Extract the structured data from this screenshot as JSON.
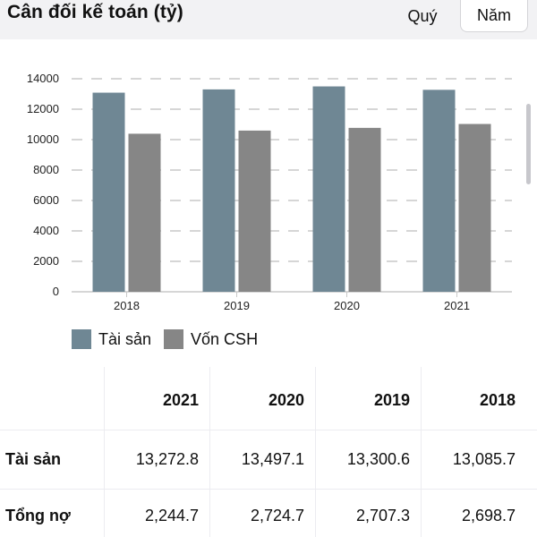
{
  "header": {
    "title": "Cân đối kế toán (tỷ)",
    "tabs": [
      "Quý",
      "Năm"
    ],
    "selected_tab": "Năm"
  },
  "chart_data": {
    "type": "bar",
    "categories": [
      "2018",
      "2019",
      "2020",
      "2021"
    ],
    "series": [
      {
        "name": "Tài sản",
        "color": "#6f8794",
        "values": [
          13085.7,
          13300.6,
          13497.1,
          13272.8
        ]
      },
      {
        "name": "Vốn CSH",
        "color": "#868686",
        "values": [
          10387.0,
          10593.3,
          10772.4,
          11028.1
        ]
      }
    ],
    "ylim": [
      0,
      14000
    ],
    "yticks": [
      "0",
      "2000",
      "4000",
      "6000",
      "8000",
      "10000",
      "12000",
      "14000"
    ],
    "grid": true,
    "legend": "bottom-left"
  },
  "table": {
    "columns": [
      "",
      "2021",
      "2020",
      "2019",
      "2018"
    ],
    "rows": [
      {
        "label": "Tài sản",
        "values": [
          "13,272.8",
          "13,497.1",
          "13,300.6",
          "13,085.7"
        ]
      },
      {
        "label": "Tổng nợ",
        "values": [
          "2,244.7",
          "2,724.7",
          "2,707.3",
          "2,698.7"
        ]
      }
    ]
  }
}
